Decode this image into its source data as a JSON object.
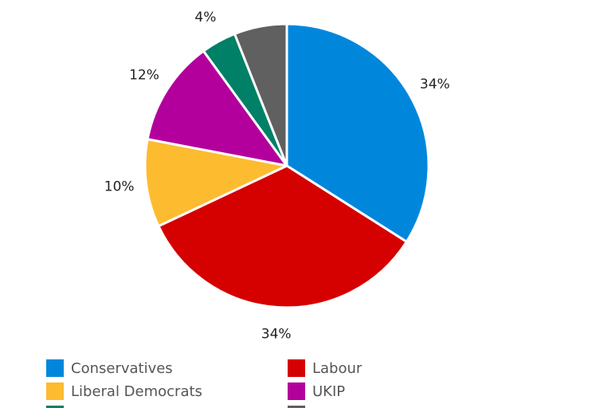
{
  "chart_data": {
    "type": "pie",
    "categories": [
      "Conservatives",
      "Labour",
      "Liberal Democrats",
      "UKIP",
      null,
      null
    ],
    "values": [
      34,
      34,
      10,
      12,
      4,
      6
    ],
    "value_labels": [
      "34%",
      "34%",
      "10%",
      "12%",
      "4%",
      null
    ],
    "colors": [
      "#0087dc",
      "#d50000",
      "#fdbb30",
      "#b3009d",
      "#008066",
      "#606060"
    ]
  }
}
